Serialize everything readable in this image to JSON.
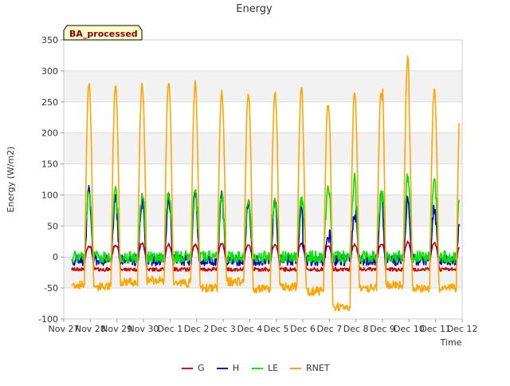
{
  "chart_data": {
    "type": "line",
    "title": "Energy",
    "badge": "BA_processed",
    "xlabel": "Time",
    "ylabel": "Energy (W/m2)",
    "ylim": [
      -100,
      350
    ],
    "xlim": [
      0,
      15
    ],
    "yticks": [
      -100,
      -50,
      0,
      50,
      100,
      150,
      200,
      250,
      300,
      350
    ],
    "xticks": [
      "Nov 27",
      "Nov 28",
      "Nov 29",
      "Nov 30",
      "Dec 1",
      "Dec 2",
      "Dec 3",
      "Dec 4",
      "Dec 5",
      "Dec 6",
      "Dec 7",
      "Dec 8",
      "Dec 9",
      "Dec 10",
      "Dec 11",
      "Dec 12"
    ],
    "grid": true,
    "legend_position": "bottom",
    "x_start": 0.3,
    "x_end": 14.9,
    "days": [
      {
        "day": 0,
        "rnet": 280,
        "h": 118,
        "le": 110,
        "g": 18,
        "night": -45
      },
      {
        "day": 1,
        "rnet": 278,
        "h": 100,
        "le": 112,
        "g": 20,
        "night": -48
      },
      {
        "day": 2,
        "rnet": 277,
        "h": 92,
        "le": 95,
        "g": 22,
        "night": -40
      },
      {
        "day": 3,
        "rnet": 280,
        "h": 95,
        "le": 105,
        "g": 20,
        "night": -38
      },
      {
        "day": 4,
        "rnet": 281,
        "h": 108,
        "le": 108,
        "g": 20,
        "night": -42
      },
      {
        "day": 5,
        "rnet": 267,
        "h": 100,
        "le": 98,
        "g": 22,
        "night": -50
      },
      {
        "day": 6,
        "rnet": 262,
        "h": 90,
        "le": 92,
        "g": 20,
        "night": -40
      },
      {
        "day": 7,
        "rnet": 265,
        "h": 92,
        "le": 88,
        "g": 20,
        "night": -52
      },
      {
        "day": 8,
        "rnet": 276,
        "h": 85,
        "le": 90,
        "g": 22,
        "night": -48
      },
      {
        "day": 9,
        "rnet": 246,
        "h": 30,
        "le": 105,
        "g": 18,
        "night": -55
      },
      {
        "day": 10,
        "rnet": 268,
        "h": 65,
        "le": 125,
        "g": 20,
        "night": -80
      },
      {
        "day": 11,
        "rnet": 265,
        "h": 98,
        "le": 100,
        "g": 20,
        "night": -50
      },
      {
        "day": 12,
        "rnet": 322,
        "h": 95,
        "le": 128,
        "g": 24,
        "night": -45
      },
      {
        "day": 13,
        "rnet": 268,
        "h": 80,
        "le": 120,
        "g": 22,
        "night": -50
      }
    ],
    "series": [
      {
        "name": "G",
        "color": "#cc0000"
      },
      {
        "name": "H",
        "color": "#0000cc"
      },
      {
        "name": "LE",
        "color": "#00e600"
      },
      {
        "name": "RNET",
        "color": "#ffa500"
      }
    ]
  }
}
